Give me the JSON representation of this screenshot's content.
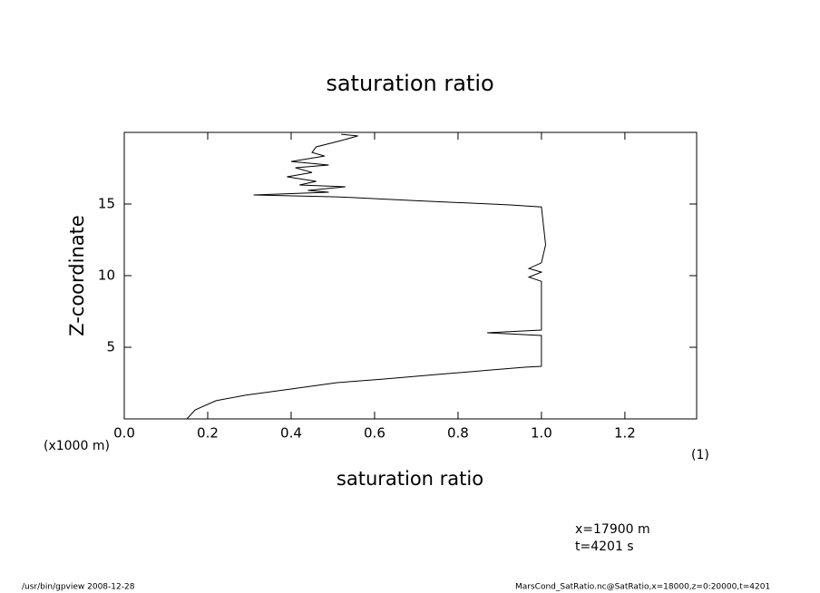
{
  "chart_data": {
    "type": "line",
    "title": "saturation ratio",
    "x_label": "saturation ratio",
    "y_label": "Z-coordinate",
    "x_unit": "(1)",
    "y_unit": "(x1000 m)",
    "xlim": [
      0,
      1.372
    ],
    "ylim": [
      0,
      20
    ],
    "xticks": [
      {
        "value": 0,
        "label": "0.0"
      },
      0.2,
      0.4,
      0.6,
      0.8,
      {
        "value": 1,
        "label": "1.0"
      },
      1.2
    ],
    "yticks": [
      5,
      10,
      15
    ],
    "color": "#000000",
    "x": [
      0.15,
      0.17,
      0.22,
      0.29,
      0.4,
      0.51,
      0.62,
      0.75,
      0.88,
      0.96,
      1.0,
      1.0,
      0.87,
      1.0,
      1.0,
      0.97,
      1.0,
      0.97,
      1.0,
      1.01,
      1.0,
      0.92,
      0.69,
      0.51,
      0.31,
      0.49,
      0.44,
      0.53,
      0.42,
      0.46,
      0.39,
      0.45,
      0.41,
      0.49,
      0.4,
      0.48,
      0.45,
      0.46,
      0.52,
      0.56,
      0.52
    ],
    "y": [
      0,
      0.63,
      1.27,
      1.65,
      2.09,
      2.53,
      2.78,
      3.1,
      3.42,
      3.61,
      3.67,
      5.82,
      6.01,
      6.2,
      9.6,
      9.9,
      10.25,
      10.5,
      10.9,
      12.15,
      14.8,
      14.94,
      15.25,
      15.5,
      15.63,
      15.82,
      15.95,
      16.2,
      16.33,
      16.58,
      16.9,
      17.2,
      17.53,
      17.72,
      17.97,
      18.35,
      18.6,
      18.99,
      19.43,
      19.75,
      19.87
    ],
    "annotations": [
      "x=17900 m",
      "t=4201 s"
    ],
    "footer_left": "/usr/bin/gpview   2008-12-28",
    "footer_right": "MarsCond_SatRatio.nc@SatRatio,x=18000,z=0:20000,t=4201"
  }
}
